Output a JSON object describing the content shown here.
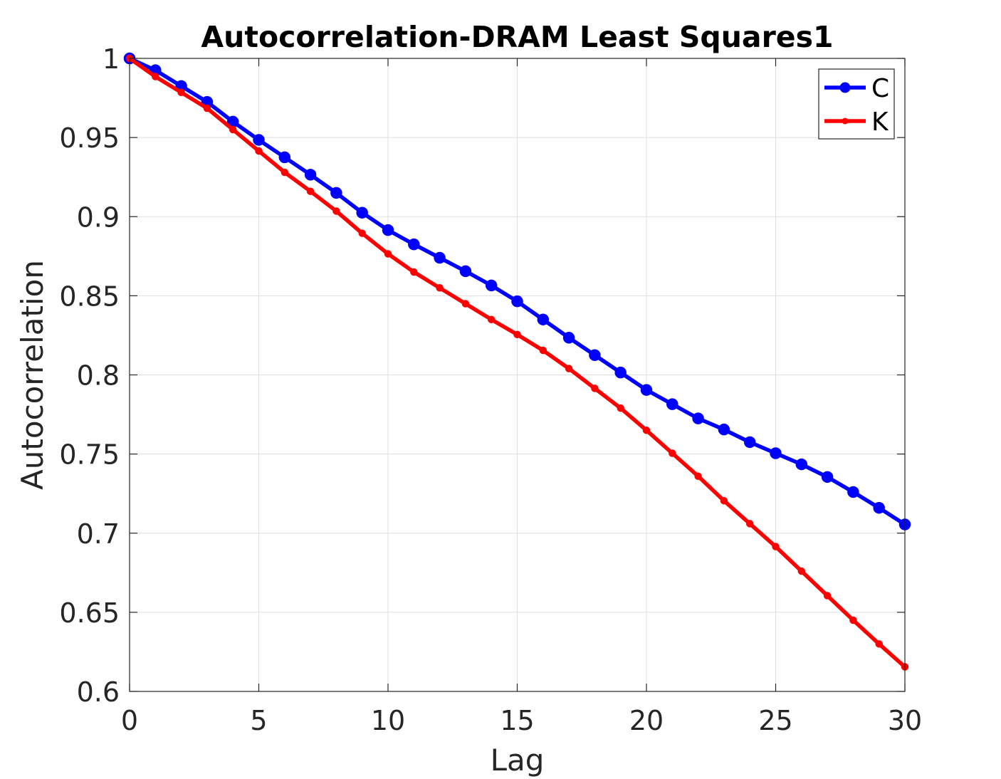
{
  "chart_data": {
    "type": "line",
    "title": "Autocorrelation-DRAM Least Squares1",
    "xlabel": "Lag",
    "ylabel": "Autocorrelation",
    "xlim": [
      0,
      30
    ],
    "ylim": [
      0.6,
      1
    ],
    "xticks": [
      0,
      5,
      10,
      15,
      20,
      25,
      30
    ],
    "xtick_labels": [
      "0",
      "5",
      "10",
      "15",
      "20",
      "25",
      "30"
    ],
    "yticks": [
      0.6,
      0.65,
      0.7,
      0.75,
      0.8,
      0.85,
      0.9,
      0.95,
      1
    ],
    "ytick_labels": [
      "0.6",
      "0.65",
      "0.7",
      "0.75",
      "0.8",
      "0.85",
      "0.9",
      "0.95",
      "1"
    ],
    "grid": true,
    "legend_position": "top-right",
    "x": [
      0,
      1,
      2,
      3,
      4,
      5,
      6,
      7,
      8,
      9,
      10,
      11,
      12,
      13,
      14,
      15,
      16,
      17,
      18,
      19,
      20,
      21,
      22,
      23,
      24,
      25,
      26,
      27,
      28,
      29,
      30
    ],
    "series": [
      {
        "name": "C",
        "color": "#0000ff",
        "marker": "large-circle",
        "values": [
          1.0,
          0.9925,
          0.9825,
          0.9725,
          0.96,
          0.9485,
          0.9375,
          0.9265,
          0.915,
          0.9025,
          0.8915,
          0.8825,
          0.874,
          0.8655,
          0.8565,
          0.8465,
          0.835,
          0.8235,
          0.8125,
          0.8015,
          0.7905,
          0.7815,
          0.7725,
          0.7655,
          0.7575,
          0.7505,
          0.7435,
          0.7355,
          0.726,
          0.716,
          0.7055
        ]
      },
      {
        "name": "K",
        "color": "#ff0000",
        "marker": "small-circle",
        "values": [
          1.0,
          0.9885,
          0.9785,
          0.9685,
          0.955,
          0.9415,
          0.928,
          0.916,
          0.9035,
          0.8895,
          0.8765,
          0.865,
          0.855,
          0.845,
          0.835,
          0.8255,
          0.8155,
          0.804,
          0.7915,
          0.779,
          0.765,
          0.7505,
          0.736,
          0.7205,
          0.706,
          0.6915,
          0.676,
          0.6605,
          0.645,
          0.63,
          0.6155
        ]
      }
    ]
  }
}
